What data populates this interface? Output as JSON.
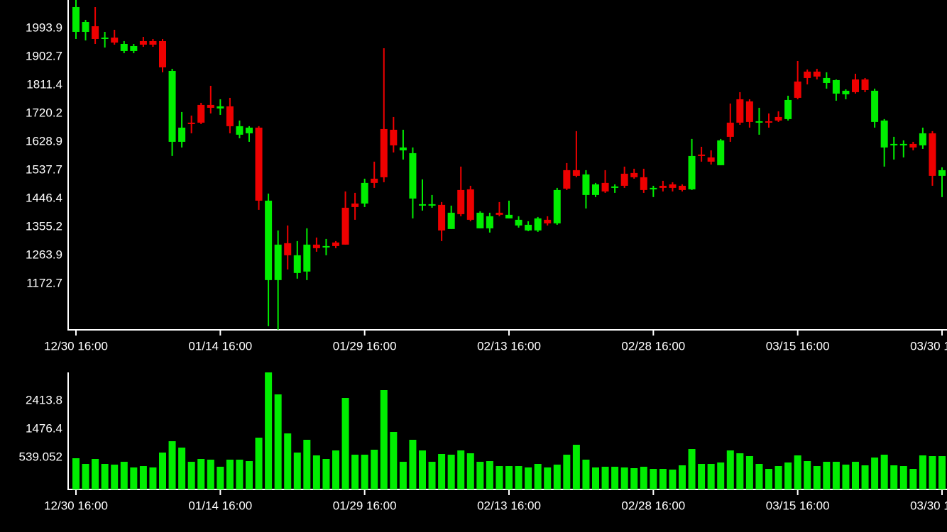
{
  "chart_data": [
    {
      "type": "candlestick",
      "categories": [
        "12/30 16:00",
        null,
        null,
        null,
        null,
        null,
        null,
        null,
        null,
        null,
        null,
        null,
        null,
        null,
        null,
        "01/14 16:00",
        null,
        null,
        null,
        null,
        null,
        null,
        null,
        null,
        null,
        null,
        null,
        null,
        null,
        null,
        "01/29 16:00",
        null,
        null,
        null,
        null,
        null,
        null,
        null,
        null,
        null,
        null,
        null,
        null,
        null,
        null,
        "02/13 16:00",
        null,
        null,
        null,
        null,
        null,
        null,
        null,
        null,
        null,
        null,
        null,
        null,
        null,
        null,
        "02/28 16:00",
        null,
        null,
        null,
        null,
        null,
        null,
        null,
        null,
        null,
        null,
        null,
        null,
        null,
        null,
        "03/15 16:00",
        null,
        null,
        null,
        null,
        null,
        null,
        null,
        null,
        null,
        null,
        null,
        null,
        null,
        null,
        "03/30 16:00"
      ],
      "open": [
        1982.5,
        1982.5,
        2000.7,
        1959.7,
        1964.3,
        1921.0,
        1921.0,
        1952.9,
        1952.9,
        1952.9,
        1629.1,
        1629.1,
        1690.7,
        1747.7,
        1747.7,
        1736.3,
        1743.1,
        1651.9,
        1656.5,
        1674.7,
        1184.5,
        1184.5,
        1303.1,
        1207.3,
        1211.9,
        1298.5,
        1291.7,
        1305.3,
        1417.1,
        1430.7,
        1430.7,
        1510.5,
        1670.1,
        1667.9,
        1601.7,
        1446.7,
        1423.9,
        1423.9,
        1426.2,
        1348.7,
        1474.1,
        1476.3,
        1350.9,
        1350.9,
        1401.1,
        1382.9,
        1360.1,
        1344.1,
        1344.1,
        1378.3,
        1366.9,
        1537.9,
        1537.9,
        1458.1,
        1458.1,
        1496.9,
        1480.9,
        1526.5,
        1528.8,
        1515.1,
        1476.3,
        1487.7,
        1492.3,
        1487.7,
        1476.3,
        1588.1,
        1578.9,
        1553.9,
        1690.7,
        1765.9,
        1759.1,
        1693.0,
        1695.2,
        1708.9,
        1702.1,
        1822.9,
        1854.8,
        1854.8,
        1818.3,
        1784.1,
        1781.9,
        1829.7,
        1829.7,
        1693.0,
        1610.9,
        1617.7,
        1617.7,
        1622.3,
        1617.7,
        1656.5,
        1519.7
      ],
      "high": [
        2085.1,
        2021.3,
        2062.3,
        1982.5,
        1989.3,
        1952.9,
        1943.7,
        1966.5,
        1959.7,
        1959.7,
        1863.9,
        1724.9,
        1713.5,
        1754.5,
        1809.2,
        1765.9,
        1770.5,
        1697.5,
        1679.3,
        1679.3,
        1462.7,
        1344.1,
        1360.1,
        1309.9,
        1350.9,
        1321.3,
        1316.7,
        1309.9,
        1469.5,
        1464.9,
        1510.5,
        1565.3,
        1930.1,
        1708.9,
        1667.9,
        1610.9,
        1508.3,
        1458.1,
        1435.3,
        1423.9,
        1549.3,
        1487.7,
        1405.7,
        1401.1,
        1435.3,
        1439.9,
        1389.7,
        1373.7,
        1387.4,
        1389.7,
        1480.9,
        1560.7,
        1663.3,
        1537.9,
        1496.9,
        1537.9,
        1492.3,
        1549.3,
        1542.5,
        1542.5,
        1487.7,
        1503.7,
        1499.1,
        1492.3,
        1638.2,
        1613.1,
        1601.7,
        1638.2,
        1752.2,
        1788.7,
        1765.9,
        1738.5,
        1720.3,
        1727.1,
        1777.3,
        1889.0,
        1861.7,
        1863.9,
        1852.6,
        1829.7,
        1797.8,
        1848.0,
        1834.3,
        1800.1,
        1702.1,
        1645.1,
        1633.7,
        1629.1,
        1674.7,
        1663.3,
        1547.0
      ],
      "low": [
        1959.7,
        1955.1,
        1943.7,
        1932.3,
        1941.5,
        1914.1,
        1914.1,
        1934.6,
        1934.6,
        1852.6,
        1583.5,
        1610.9,
        1656.5,
        1686.1,
        1720.3,
        1715.7,
        1656.5,
        1640.5,
        1629.1,
        1410.2,
        1036.3,
        1024.9,
        1218.7,
        1189.1,
        1184.5,
        1275.7,
        1264.3,
        1287.1,
        1298.5,
        1378.3,
        1419.3,
        1480.9,
        1499.1,
        1594.9,
        1572.1,
        1382.9,
        1407.9,
        1417.1,
        1309.9,
        1348.7,
        1389.7,
        1373.7,
        1350.9,
        1337.3,
        1389.7,
        1382.9,
        1353.2,
        1341.8,
        1339.5,
        1360.1,
        1362.3,
        1474.1,
        1515.1,
        1414.8,
        1451.3,
        1464.9,
        1464.9,
        1480.9,
        1510.5,
        1464.9,
        1451.3,
        1469.5,
        1469.5,
        1469.5,
        1474.1,
        1565.3,
        1556.1,
        1553.9,
        1629.1,
        1683.8,
        1674.7,
        1651.9,
        1674.7,
        1693.0,
        1697.5,
        1765.9,
        1813.8,
        1829.7,
        1800.1,
        1761.3,
        1765.9,
        1784.1,
        1788.7,
        1674.7,
        1549.3,
        1572.1,
        1578.9,
        1601.7,
        1606.3,
        1487.7,
        1451.3
      ],
      "close": [
        2062.3,
        2014.4,
        1959.7,
        1964.3,
        1948.3,
        1943.7,
        1936.9,
        1941.5,
        1941.5,
        1868.5,
        1857.1,
        1674.7,
        1686.1,
        1690.7,
        1738.5,
        1743.1,
        1679.3,
        1679.3,
        1674.7,
        1439.9,
        1439.9,
        1298.5,
        1264.3,
        1264.3,
        1298.5,
        1287.1,
        1293.9,
        1293.9,
        1298.5,
        1419.3,
        1496.9,
        1496.9,
        1515.1,
        1617.7,
        1610.9,
        1592.6,
        1428.5,
        1428.5,
        1344.1,
        1401.1,
        1396.5,
        1378.3,
        1401.1,
        1389.7,
        1394.3,
        1394.3,
        1378.3,
        1362.3,
        1382.9,
        1366.9,
        1474.1,
        1478.6,
        1519.7,
        1524.2,
        1492.3,
        1469.5,
        1485.5,
        1487.7,
        1515.1,
        1474.1,
        1480.9,
        1480.9,
        1480.9,
        1474.1,
        1583.5,
        1583.5,
        1565.3,
        1633.7,
        1645.1,
        1690.7,
        1693.0,
        1695.2,
        1693.0,
        1697.5,
        1763.6,
        1770.5,
        1834.3,
        1838.9,
        1834.3,
        1827.5,
        1793.3,
        1788.7,
        1795.5,
        1793.3,
        1697.5,
        1622.3,
        1622.3,
        1610.9,
        1656.5,
        1519.7,
        1537.9
      ],
      "up_color": "#00ee00",
      "down_color": "#ee0000",
      "ylim": [
        1024.5,
        2085.1
      ],
      "yticks": [
        1172.7,
        1263.9,
        1355.2,
        1446.4,
        1537.7,
        1628.9,
        1720.2,
        1811.4,
        1902.7,
        1993.9
      ],
      "grid": false
    },
    {
      "type": "bar",
      "categories": [
        "12/30 16:00",
        null,
        null,
        null,
        null,
        null,
        null,
        null,
        null,
        null,
        null,
        null,
        null,
        null,
        null,
        "01/14 16:00",
        null,
        null,
        null,
        null,
        null,
        null,
        null,
        null,
        null,
        null,
        null,
        null,
        null,
        null,
        "01/29 16:00",
        null,
        null,
        null,
        null,
        null,
        null,
        null,
        null,
        null,
        null,
        null,
        null,
        null,
        null,
        "02/13 16:00",
        null,
        null,
        null,
        null,
        null,
        null,
        null,
        null,
        null,
        null,
        null,
        null,
        null,
        null,
        "02/28 16:00",
        null,
        null,
        null,
        null,
        null,
        null,
        null,
        null,
        null,
        null,
        null,
        null,
        null,
        null,
        "03/15 16:00",
        null,
        null,
        null,
        null,
        null,
        null,
        null,
        null,
        null,
        null,
        null,
        null,
        null,
        null,
        "03/30 16:00"
      ],
      "values": [
        515.6,
        328.1,
        492.2,
        328.1,
        304.7,
        398.4,
        211.0,
        257.8,
        211.0,
        703.1,
        1078.1,
        867.1,
        398.4,
        492.2,
        468.7,
        234.4,
        468.7,
        468.7,
        421.9,
        1195.2,
        3351.3,
        2624.8,
        1335.8,
        703.1,
        1124.9,
        609.4,
        492.2,
        773.4,
        2507.6,
        632.8,
        632.8,
        796.8,
        2765.4,
        1382.7,
        398.4,
        1124.9,
        773.4,
        398.4,
        656.2,
        632.8,
        773.4,
        679.7,
        398.4,
        421.9,
        257.8,
        257.8,
        257.8,
        211.0,
        328.1,
        211.0,
        304.7,
        632.8,
        960.9,
        468.7,
        211.0,
        234.4,
        234.4,
        211.0,
        187.5,
        234.4,
        164.1,
        164.1,
        140.7,
        281.3,
        820.3,
        328.1,
        328.1,
        375.0,
        773.4,
        679.7,
        586.0,
        328.1,
        164.1,
        257.8,
        375.0,
        609.4,
        421.9,
        257.8,
        398.4,
        398.4,
        304.7,
        398.4,
        281.3,
        539.1,
        632.8,
        281.3,
        257.8,
        164.1,
        609.4,
        586.0,
        586.0
      ],
      "color": "#00ee00",
      "ylim": [
        -515.5,
        3351.2
      ],
      "yticks": [
        539.052,
        1476.4,
        2413.8
      ],
      "grid": false
    }
  ]
}
